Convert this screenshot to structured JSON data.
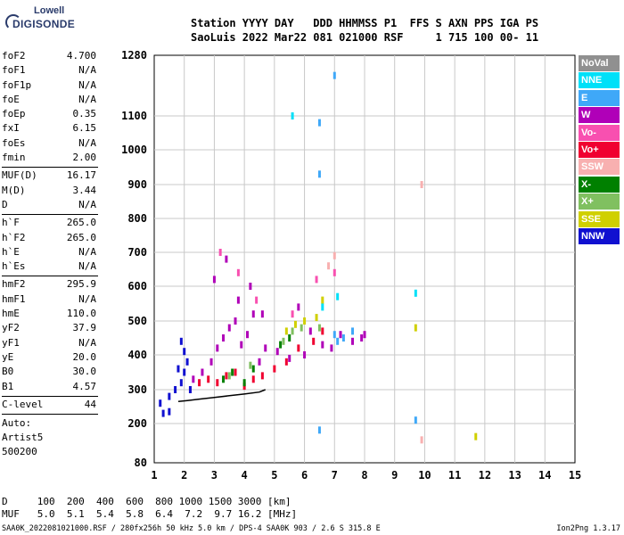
{
  "logo": {
    "top": "Lowell",
    "bottom": "DIGISONDE"
  },
  "header": {
    "line1": "Station YYYY DAY   DDD HHMMSS P1  FFS S AXN PPS IGA PS",
    "line2": "SaoLuis 2022 Mar22 081 021000 RSF     1 715 100 00- 11"
  },
  "params": [
    {
      "label": "foF2",
      "value": "4.700"
    },
    {
      "label": "foF1",
      "value": "N/A"
    },
    {
      "label": "foF1p",
      "value": "N/A"
    },
    {
      "label": "foE",
      "value": "N/A"
    },
    {
      "label": "foEp",
      "value": "0.35"
    },
    {
      "label": "fxI",
      "value": "6.15"
    },
    {
      "label": "foEs",
      "value": "N/A"
    },
    {
      "label": "fmin",
      "value": "2.00"
    },
    {
      "sep": true
    },
    {
      "label": "MUF(D)",
      "value": "16.17"
    },
    {
      "label": "M(D)",
      "value": "3.44"
    },
    {
      "label": "D",
      "value": "N/A"
    },
    {
      "sep": true
    },
    {
      "label": "h`F",
      "value": "265.0"
    },
    {
      "label": "h`F2",
      "value": "265.0"
    },
    {
      "label": "h`E",
      "value": "N/A"
    },
    {
      "label": "h`Es",
      "value": "N/A"
    },
    {
      "sep": true
    },
    {
      "label": "hmF2",
      "value": "295.9"
    },
    {
      "label": "hmF1",
      "value": "N/A"
    },
    {
      "label": "hmE",
      "value": "110.0"
    },
    {
      "label": "yF2",
      "value": "37.9"
    },
    {
      "label": "yF1",
      "value": "N/A"
    },
    {
      "label": "yE",
      "value": "20.0"
    },
    {
      "label": "B0",
      "value": "30.0"
    },
    {
      "label": "B1",
      "value": "4.57"
    },
    {
      "sep": true
    },
    {
      "label": "C-level",
      "value": "44"
    },
    {
      "sep": true
    }
  ],
  "misc": {
    "line1": "Auto:",
    "line2": "Artist5",
    "line3": "500200"
  },
  "legend": [
    {
      "label": "NoVal",
      "color": "#909090"
    },
    {
      "label": "NNE",
      "color": "#00e0f8"
    },
    {
      "label": "E",
      "color": "#3fa8f8"
    },
    {
      "label": "W",
      "color": "#b000b8"
    },
    {
      "label": "Vo-",
      "color": "#f850b0"
    },
    {
      "label": "Vo+",
      "color": "#f00030"
    },
    {
      "label": "SSW",
      "color": "#f8b0b0"
    },
    {
      "label": "X-",
      "color": "#008000"
    },
    {
      "label": "X+",
      "color": "#80c060"
    },
    {
      "label": "SSE",
      "color": "#d0d000"
    },
    {
      "label": "NNW",
      "color": "#1010d0"
    }
  ],
  "footer": {
    "d_line": "D     100  200  400  600  800 1000 1500 3000 [km]",
    "muf_line": "MUF   5.0  5.1  5.4  5.8  6.4  7.2  9.7 16.2 [MHz]",
    "file_line": "SAA0K_2022081021000.RSF / 280fx256h 50 kHz 5.0 km / DPS-4 SAA0K 903 / 2.6 S 315.8 E",
    "version": "Ion2Png 1.3.17"
  },
  "chart_data": {
    "type": "scatter",
    "x_ticks": [
      "1",
      "2",
      "3",
      "4",
      "5",
      "6",
      "7",
      "8",
      "9",
      "10",
      "11",
      "12",
      "13",
      "14",
      "15"
    ],
    "y_ticks": [
      "80",
      "200",
      "300",
      "400",
      "500",
      "600",
      "700",
      "800",
      "900",
      "1000",
      "1100",
      "1280"
    ],
    "xlim": [
      1,
      15
    ],
    "ylim": [
      80,
      1280
    ],
    "grid": true,
    "trace": {
      "name": "",
      "x": [
        1.8,
        2.1,
        2.5,
        3.0,
        3.5,
        4.0,
        4.5,
        4.7
      ],
      "y": [
        265,
        268,
        272,
        277,
        282,
        287,
        293,
        300
      ]
    },
    "series": [
      {
        "color": "#b000b8",
        "x": [
          2.3,
          2.6,
          2.9,
          3.1,
          3.3,
          3.5,
          3.7,
          3.9,
          4.1,
          4.3,
          4.5,
          4.7,
          5.1,
          5.5,
          6.0,
          6.2,
          6.6,
          6.9,
          7.2,
          7.6,
          7.9,
          8.0,
          3.0,
          3.4,
          3.8,
          4.2,
          4.6,
          5.8
        ],
        "y": [
          330,
          350,
          380,
          420,
          450,
          480,
          500,
          430,
          460,
          520,
          380,
          420,
          410,
          390,
          400,
          470,
          430,
          420,
          460,
          440,
          450,
          460,
          620,
          680,
          560,
          600,
          520,
          540
        ]
      },
      {
        "color": "#f00030",
        "x": [
          2.2,
          2.5,
          2.8,
          3.1,
          3.4,
          3.7,
          4.0,
          4.3,
          4.6,
          5.0,
          5.4,
          5.8,
          6.3,
          6.6
        ],
        "y": [
          300,
          320,
          330,
          320,
          340,
          350,
          310,
          330,
          340,
          360,
          380,
          420,
          440,
          470
        ]
      },
      {
        "color": "#1010d0",
        "x": [
          1.2,
          1.5,
          1.7,
          1.9,
          2.0,
          2.1,
          2.0,
          1.9,
          1.8,
          2.2,
          1.3,
          1.5
        ],
        "y": [
          260,
          280,
          300,
          320,
          350,
          380,
          410,
          440,
          360,
          300,
          230,
          235
        ]
      },
      {
        "color": "#3fa8f8",
        "x": [
          6.5,
          6.5,
          7.0,
          7.1,
          7.3,
          7.6,
          9.7,
          6.5,
          7.0
        ],
        "y": [
          930,
          1080,
          460,
          440,
          450,
          470,
          210,
          180,
          1220
        ]
      },
      {
        "color": "#008000",
        "x": [
          3.3,
          3.6,
          4.0,
          4.3,
          5.2,
          5.5
        ],
        "y": [
          330,
          350,
          320,
          360,
          430,
          450
        ]
      },
      {
        "color": "#80c060",
        "x": [
          3.5,
          4.2,
          5.3,
          5.6,
          5.9,
          6.5
        ],
        "y": [
          340,
          370,
          440,
          470,
          480,
          480
        ]
      },
      {
        "color": "#d0d000",
        "x": [
          5.4,
          5.7,
          6.0,
          6.4,
          6.6,
          9.7,
          11.7
        ],
        "y": [
          470,
          490,
          500,
          510,
          560,
          480,
          160
        ]
      },
      {
        "color": "#f850b0",
        "x": [
          3.2,
          3.8,
          4.4,
          5.6,
          6.4,
          7.0
        ],
        "y": [
          700,
          640,
          560,
          520,
          620,
          640
        ]
      },
      {
        "color": "#00e0f8",
        "x": [
          6.6,
          7.1,
          9.7,
          5.6
        ],
        "y": [
          540,
          570,
          580,
          1100
        ]
      },
      {
        "color": "#f8b0b0",
        "x": [
          6.8,
          9.9,
          9.9,
          7.0
        ],
        "y": [
          660,
          900,
          150,
          690
        ]
      }
    ]
  }
}
